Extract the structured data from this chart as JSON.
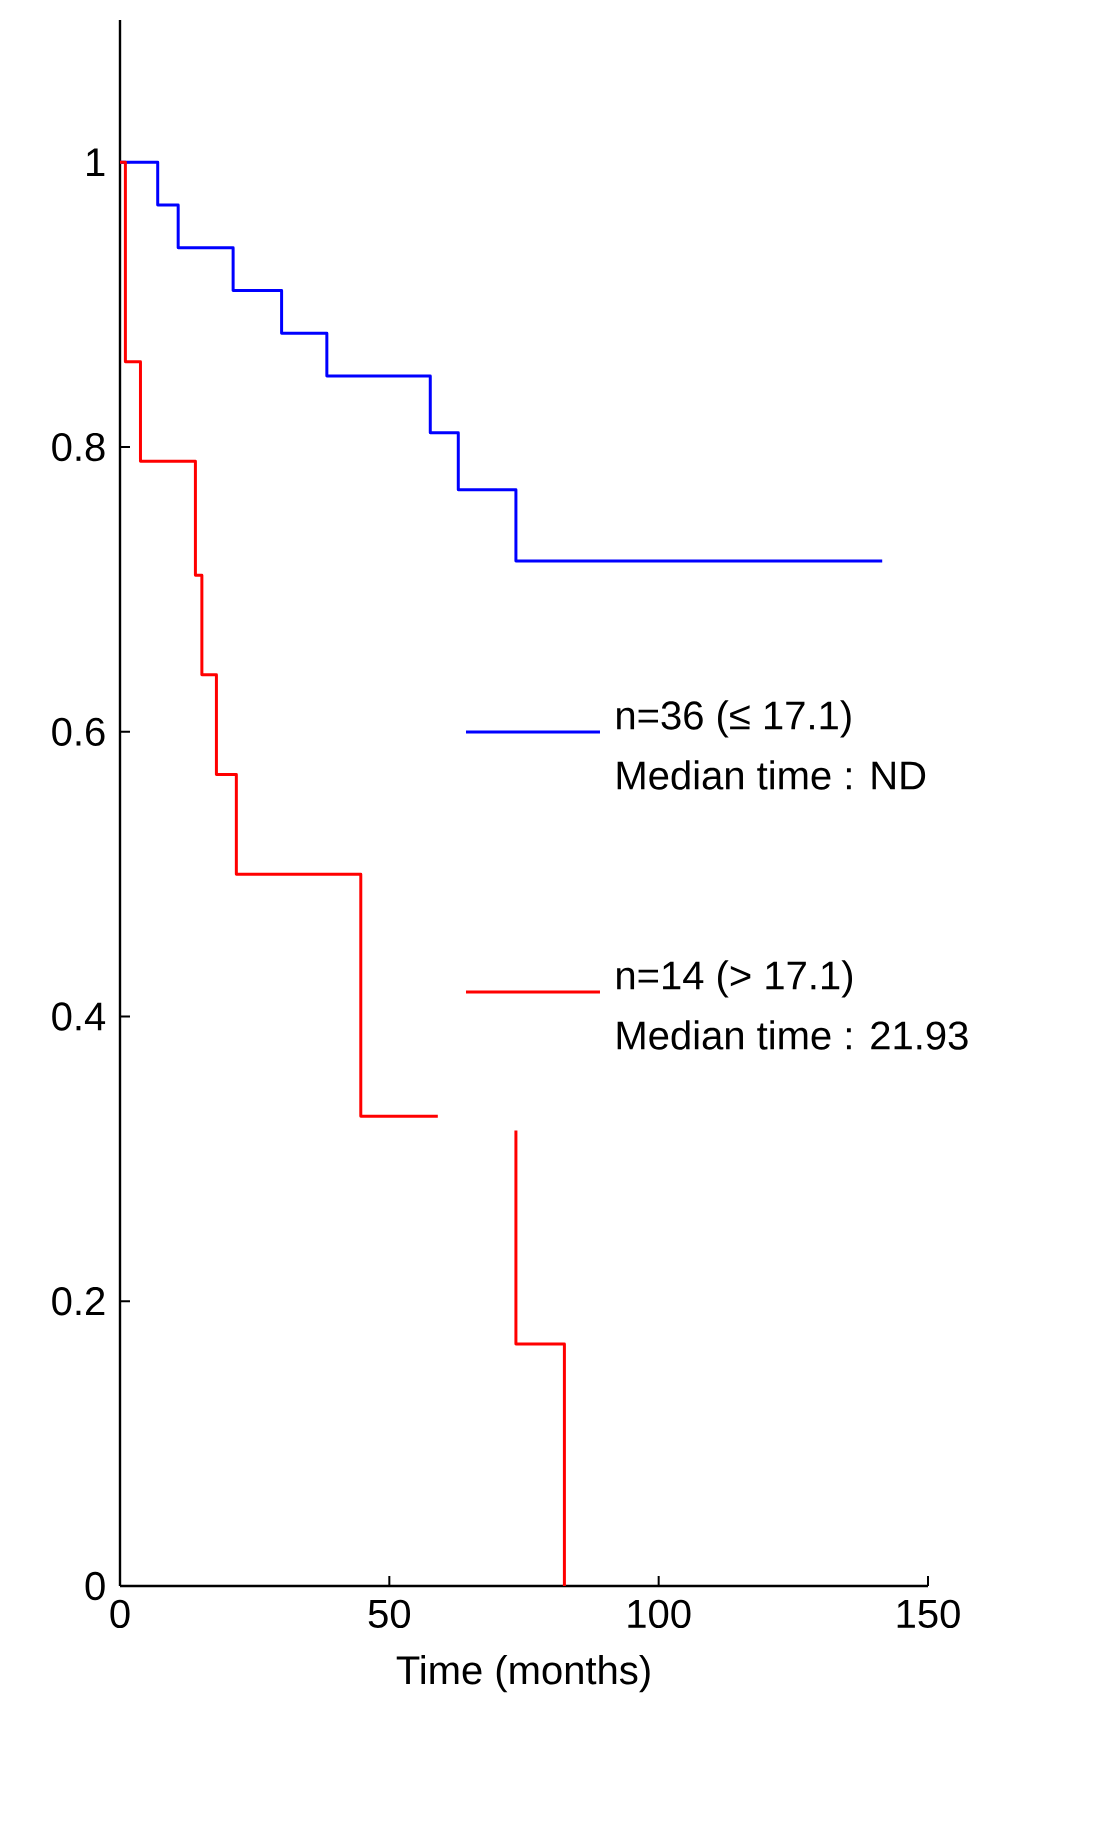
{
  "chart_data": {
    "type": "step",
    "xlabel": "Time (months)",
    "xlim": [
      0,
      150
    ],
    "xticks": [
      0,
      50,
      100,
      150
    ],
    "ylim": [
      0,
      1.1
    ],
    "yticks": [
      0,
      0.2,
      0.4,
      0.6,
      0.8,
      1
    ],
    "legend": "right",
    "grid": false,
    "series": [
      {
        "name": "n=36 (≤ 17.1)",
        "color": "#0000ff",
        "x": [
          0,
          7.0,
          10.8,
          21.0,
          30.0,
          38.4,
          57.6,
          62.8,
          73.5,
          141.5
        ],
        "values": [
          1,
          0.97,
          0.94,
          0.91,
          0.88,
          0.85,
          0.81,
          0.77,
          0.72,
          0.72
        ]
      },
      {
        "name": "n=14 (> 17.1)",
        "color": "#ff0000",
        "x": [
          0,
          1.0,
          3.8,
          14.0,
          15.2,
          17.9,
          21.6,
          44.7,
          59.0,
          null,
          73.5,
          73.5,
          82.5,
          82.5
        ],
        "values": [
          1,
          0.86,
          0.79,
          0.71,
          0.64,
          0.57,
          0.5,
          0.33,
          0.33,
          null,
          0.32,
          0.17,
          0.17,
          0
        ]
      }
    ],
    "annotations": [
      "Median time : ND",
      "Median time : 21.93"
    ]
  }
}
